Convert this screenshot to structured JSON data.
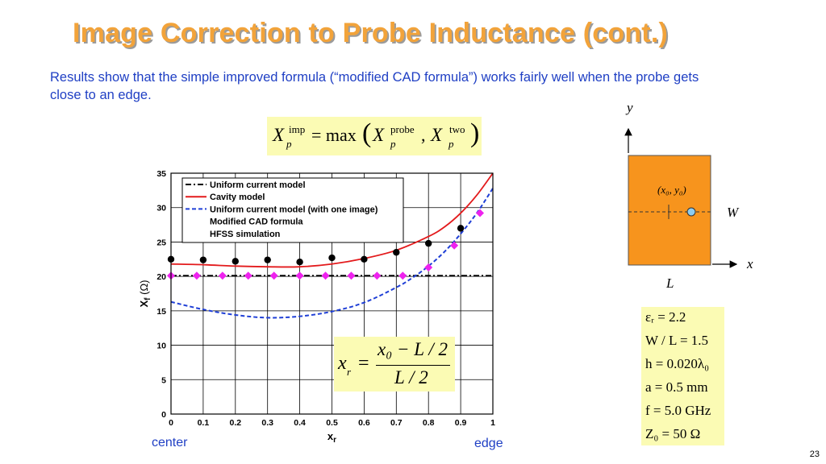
{
  "slide": {
    "title": "Image Correction to Probe Inductance (cont.)",
    "intro": "Results show that the simple improved formula (“modified CAD formula”) works fairly well when the probe gets close to an edge.",
    "page_number": "23",
    "center_label": "center",
    "edge_label": "edge"
  },
  "formula_max": {
    "lhs": "X",
    "lhs_sup": "imp",
    "lhs_sub": "p",
    "eq": "= max",
    "t1": "X",
    "t1_sup": "probe",
    "t1_sub": "p",
    "comma": ",",
    "t2": "X",
    "t2_sup": "two",
    "t2_sub": "p"
  },
  "formula_xr": {
    "lhs": "x",
    "lhs_sub": "r",
    "eq": "=",
    "numerator": "x₀ − L / 2",
    "denominator": "L / 2"
  },
  "patch_diagram": {
    "y_axis": "y",
    "x_axis": "x",
    "point_label": "(x₀, y₀)",
    "width_label": "W",
    "length_label": "L",
    "patch_color": "#f7941d",
    "probe_color": "#8ecdf0"
  },
  "params": [
    "εᵣ = 2.2",
    "W / L = 1.5",
    "h = 0.020λ₀",
    "a = 0.5 mm",
    "f = 5.0 GHz",
    "Z₀ = 50 Ω"
  ],
  "colors": {
    "title": "#f2a33a",
    "text_blue": "#1f3fc4",
    "highlight": "#fbfbb4",
    "cavity": "#e31a1c",
    "image_model": "#1f3fd6",
    "cad": "#ee22ee",
    "hfss": "#000000"
  },
  "chart_data": {
    "type": "line",
    "title": "",
    "xlabel": "x",
    "xlabel_sub": "r",
    "ylabel": "X",
    "ylabel_sub": "f",
    "ylabel_unit": "(Ω)",
    "xlim": [
      0,
      1
    ],
    "ylim": [
      0,
      35
    ],
    "xticks": [
      "0",
      "0.1",
      "0.2",
      "0.3",
      "0.4",
      "0.5",
      "0.6",
      "0.7",
      "0.8",
      "0.9",
      "1"
    ],
    "yticks": [
      "0",
      "5",
      "10",
      "15",
      "20",
      "25",
      "30",
      "35"
    ],
    "grid": true,
    "legend_position": "top-left",
    "series": [
      {
        "name": "Uniform current model",
        "style": "dash-dot",
        "color": "#000000",
        "x": [
          0,
          0.1,
          0.2,
          0.3,
          0.4,
          0.5,
          0.6,
          0.7,
          0.8,
          0.9,
          1.0
        ],
        "y": [
          20.1,
          20.1,
          20.1,
          20.1,
          20.1,
          20.1,
          20.1,
          20.1,
          20.1,
          20.1,
          20.1
        ]
      },
      {
        "name": "Cavity model",
        "style": "solid",
        "color": "#e31a1c",
        "x": [
          0,
          0.1,
          0.2,
          0.3,
          0.4,
          0.5,
          0.6,
          0.7,
          0.8,
          0.85,
          0.9,
          0.95,
          1.0
        ],
        "y": [
          21.8,
          21.7,
          21.5,
          21.4,
          21.4,
          21.8,
          22.6,
          23.8,
          25.8,
          27.2,
          29.2,
          31.8,
          35.0
        ]
      },
      {
        "name": "Uniform current model (with one image)",
        "style": "dashed",
        "color": "#1f3fd6",
        "x": [
          0,
          0.1,
          0.2,
          0.3,
          0.4,
          0.5,
          0.6,
          0.7,
          0.75,
          0.8,
          0.85,
          0.9,
          0.95,
          1.0
        ],
        "y": [
          16.3,
          15.2,
          14.4,
          14.0,
          14.2,
          14.9,
          16.2,
          18.4,
          19.8,
          21.5,
          23.6,
          26.2,
          29.2,
          32.8
        ]
      },
      {
        "name": "Modified CAD formula",
        "style": "markers",
        "marker": "diamond",
        "color": "#ee22ee",
        "x": [
          0,
          0.08,
          0.16,
          0.24,
          0.32,
          0.4,
          0.48,
          0.56,
          0.64,
          0.72,
          0.8,
          0.88,
          0.96
        ],
        "y": [
          20.1,
          20.1,
          20.1,
          20.1,
          20.1,
          20.1,
          20.1,
          20.1,
          20.1,
          20.1,
          21.3,
          24.5,
          29.2
        ]
      },
      {
        "name": "HFSS simulation",
        "style": "markers",
        "marker": "circle",
        "color": "#000000",
        "x": [
          0,
          0.1,
          0.2,
          0.3,
          0.4,
          0.5,
          0.6,
          0.7,
          0.8,
          0.9
        ],
        "y": [
          22.5,
          22.4,
          22.2,
          22.4,
          22.1,
          22.7,
          22.5,
          23.5,
          24.8,
          27.0
        ]
      }
    ]
  }
}
